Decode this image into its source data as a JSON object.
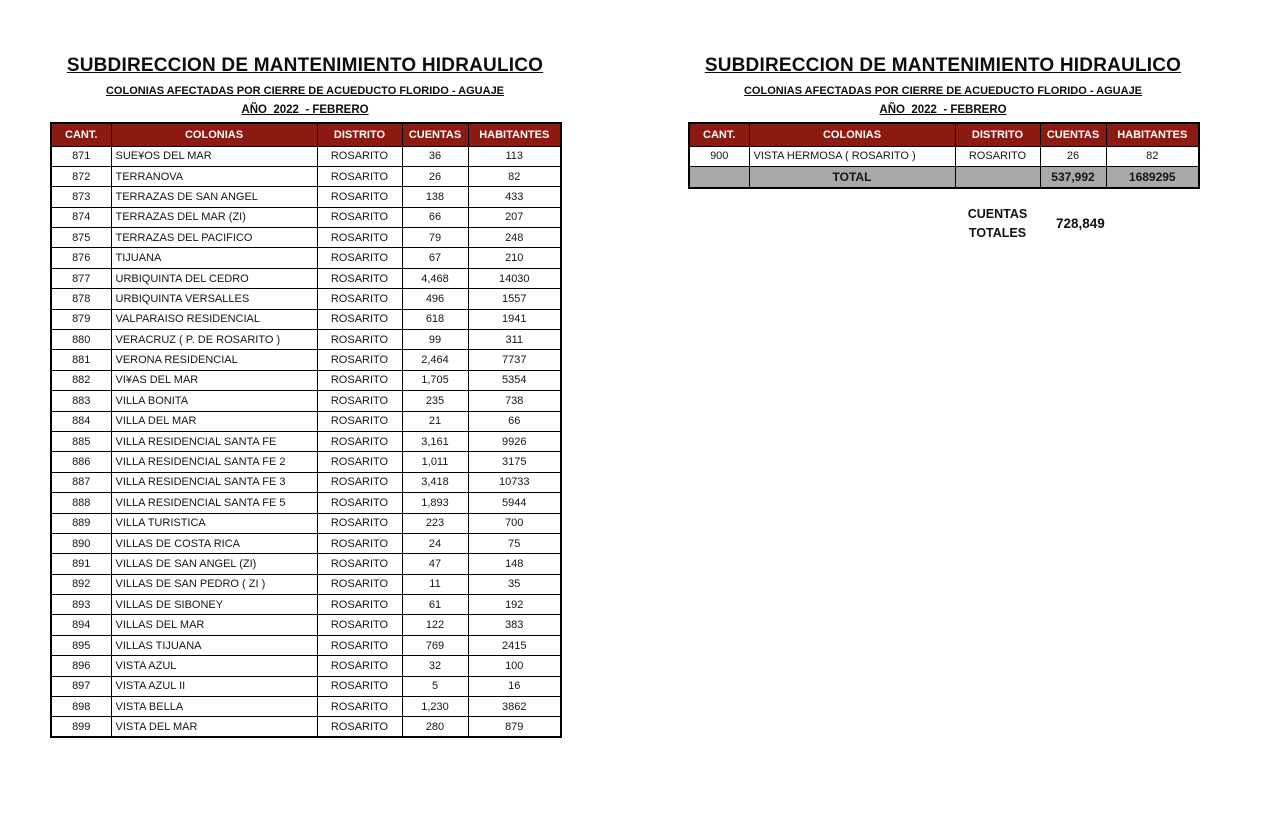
{
  "colors": {
    "header_bg": "#8C1A13",
    "header_text": "#ffffff",
    "total_bg": "#A9A9A9",
    "border": "#000000"
  },
  "left_panel": {
    "title": "SUBDIRECCION DE MANTENIMIENTO HIDRAULICO",
    "subtitle": "COLONIAS AFECTADAS POR CIERRE DE ACUEDUCTO FLORIDO - AGUAJE",
    "period": "AÑO  2022  - FEBRERO",
    "columns": [
      "CANT.",
      "COLONIAS",
      "DISTRITO",
      "CUENTAS",
      "HABITANTES"
    ],
    "rows": [
      [
        "871",
        "SUE¥OS DEL MAR",
        "ROSARITO",
        "36",
        "113"
      ],
      [
        "872",
        "TERRANOVA",
        "ROSARITO",
        "26",
        "82"
      ],
      [
        "873",
        "TERRAZAS DE SAN ANGEL",
        "ROSARITO",
        "138",
        "433"
      ],
      [
        "874",
        "TERRAZAS DEL MAR (ZI)",
        "ROSARITO",
        "66",
        "207"
      ],
      [
        "875",
        "TERRAZAS DEL PACIFICO",
        "ROSARITO",
        "79",
        "248"
      ],
      [
        "876",
        "TIJUANA",
        "ROSARITO",
        "67",
        "210"
      ],
      [
        "877",
        "URBIQUINTA DEL CEDRO",
        "ROSARITO",
        "4,468",
        "14030"
      ],
      [
        "878",
        "URBIQUINTA VERSALLES",
        "ROSARITO",
        "496",
        "1557"
      ],
      [
        "879",
        "VALPARAISO RESIDENCIAL",
        "ROSARITO",
        "618",
        "1941"
      ],
      [
        "880",
        "VERACRUZ ( P. DE ROSARITO )",
        "ROSARITO",
        "99",
        "311"
      ],
      [
        "881",
        "VERONA RESIDENCIAL",
        "ROSARITO",
        "2,464",
        "7737"
      ],
      [
        "882",
        "VI¥AS DEL MAR",
        "ROSARITO",
        "1,705",
        "5354"
      ],
      [
        "883",
        "VILLA BONITA",
        "ROSARITO",
        "235",
        "738"
      ],
      [
        "884",
        "VILLA DEL MAR",
        "ROSARITO",
        "21",
        "66"
      ],
      [
        "885",
        "VILLA RESIDENCIAL SANTA FE",
        "ROSARITO",
        "3,161",
        "9926"
      ],
      [
        "886",
        "VILLA RESIDENCIAL SANTA FE 2",
        "ROSARITO",
        "1,011",
        "3175"
      ],
      [
        "887",
        "VILLA RESIDENCIAL SANTA FE 3",
        "ROSARITO",
        "3,418",
        "10733"
      ],
      [
        "888",
        "VILLA RESIDENCIAL SANTA FE 5",
        "ROSARITO",
        "1,893",
        "5944"
      ],
      [
        "889",
        "VILLA TURISTICA",
        "ROSARITO",
        "223",
        "700"
      ],
      [
        "890",
        "VILLAS DE COSTA RICA",
        "ROSARITO",
        "24",
        "75"
      ],
      [
        "891",
        "VILLAS DE SAN ANGEL (ZI)",
        "ROSARITO",
        "47",
        "148"
      ],
      [
        "892",
        "VILLAS DE SAN PEDRO ( ZI )",
        "ROSARITO",
        "11",
        "35"
      ],
      [
        "893",
        "VILLAS DE SIBONEY",
        "ROSARITO",
        "61",
        "192"
      ],
      [
        "894",
        "VILLAS DEL MAR",
        "ROSARITO",
        "122",
        "383"
      ],
      [
        "895",
        "VILLAS TIJUANA",
        "ROSARITO",
        "769",
        "2415"
      ],
      [
        "896",
        "VISTA AZUL",
        "ROSARITO",
        "32",
        "100"
      ],
      [
        "897",
        "VISTA AZUL II",
        "ROSARITO",
        "5",
        "16"
      ],
      [
        "898",
        "VISTA BELLA",
        "ROSARITO",
        "1,230",
        "3862"
      ],
      [
        "899",
        "VISTA DEL MAR",
        "ROSARITO",
        "280",
        "879"
      ]
    ]
  },
  "right_panel": {
    "title": "SUBDIRECCION DE MANTENIMIENTO HIDRAULICO",
    "subtitle": "COLONIAS AFECTADAS POR CIERRE DE ACUEDUCTO FLORIDO - AGUAJE",
    "period": "AÑO  2022  - FEBRERO",
    "columns": [
      "CANT.",
      "COLONIAS",
      "DISTRITO",
      "CUENTAS",
      "HABITANTES"
    ],
    "rows": [
      [
        "900",
        "VISTA HERMOSA ( ROSARITO )",
        "ROSARITO",
        "26",
        "82"
      ]
    ],
    "total_row": {
      "label": "TOTAL",
      "cuentas": "537,992",
      "habitantes": "1689295"
    },
    "summary": {
      "label": "CUENTAS\nTOTALES",
      "value": "728,849"
    }
  }
}
